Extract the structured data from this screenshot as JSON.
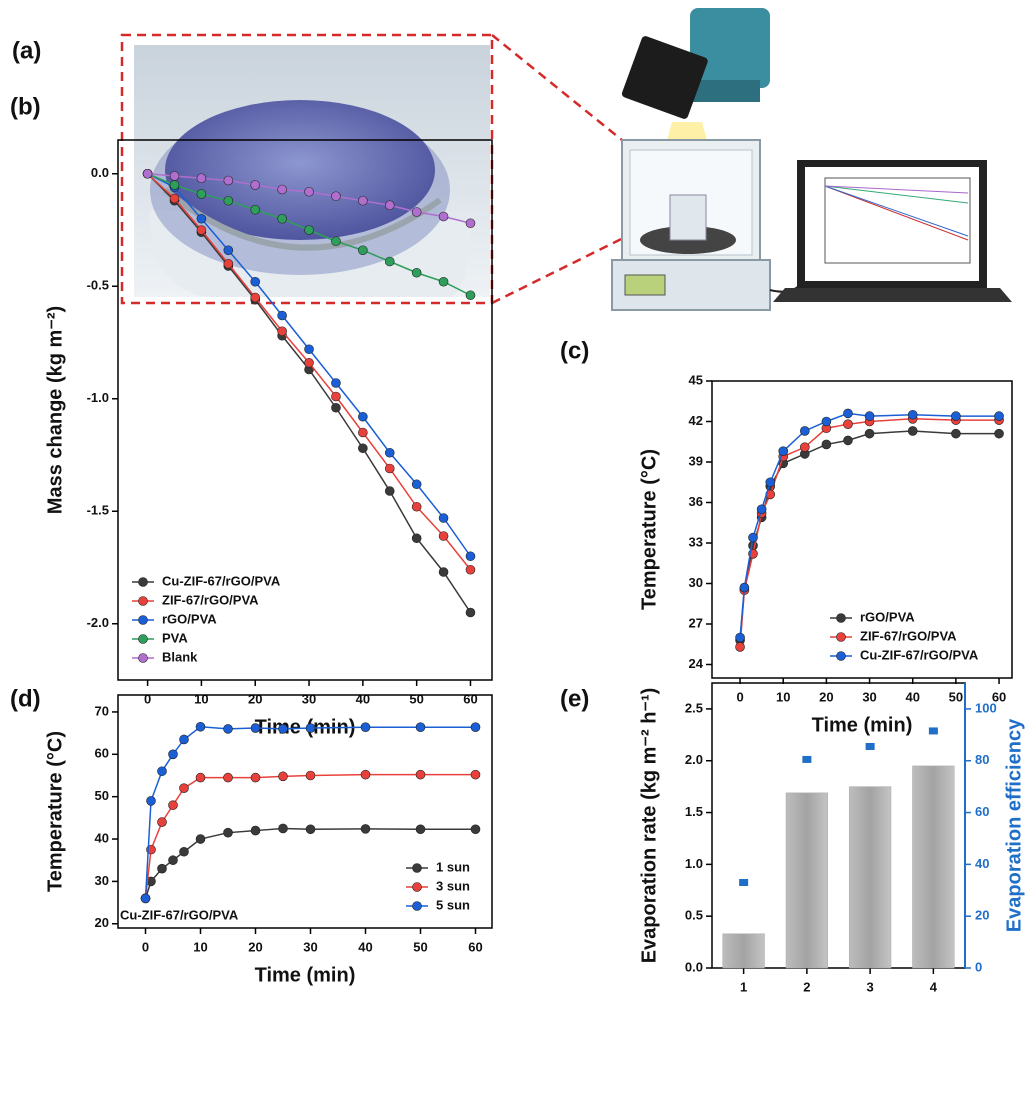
{
  "figure_a": {
    "panel": "(a)"
  },
  "chart_data": [
    {
      "type": "line",
      "panel": "(b)",
      "xlabel": "Time (min)",
      "ylabel": "Mass change (kg m⁻²)",
      "x": [
        0,
        5,
        10,
        15,
        20,
        25,
        30,
        35,
        40,
        45,
        50,
        55,
        60
      ],
      "xlim": [
        -5.5,
        64
      ],
      "xticks": [
        0,
        10,
        20,
        30,
        40,
        50,
        60
      ],
      "ylim": [
        -2.25,
        0.15
      ],
      "yticks": [
        {
          "value": 0,
          "label": "0.0"
        },
        -0.5,
        {
          "value": -1,
          "label": "-1.0"
        },
        -1.5,
        {
          "value": -2,
          "label": "-2.0"
        }
      ],
      "legend": "lower left",
      "series": [
        {
          "name": "Cu-ZIF-67/rGO/PVA",
          "color": "#3a3a3a",
          "values": [
            0,
            -0.12,
            -0.26,
            -0.41,
            -0.56,
            -0.72,
            -0.87,
            -1.04,
            -1.22,
            -1.41,
            -1.62,
            -1.77,
            -1.95
          ]
        },
        {
          "name": "ZIF-67/rGO/PVA",
          "color": "#e8413c",
          "values": [
            0,
            -0.11,
            -0.25,
            -0.4,
            -0.55,
            -0.7,
            -0.84,
            -0.99,
            -1.15,
            -1.31,
            -1.48,
            -1.61,
            -1.76
          ]
        },
        {
          "name": "rGO/PVA",
          "color": "#1a5fd6",
          "values": [
            0,
            -0.06,
            -0.2,
            -0.34,
            -0.48,
            -0.63,
            -0.78,
            -0.93,
            -1.08,
            -1.24,
            -1.38,
            -1.53,
            -1.7
          ]
        },
        {
          "name": "PVA",
          "color": "#2e9e5b",
          "values": [
            0,
            -0.05,
            -0.09,
            -0.12,
            -0.16,
            -0.2,
            -0.25,
            -0.3,
            -0.34,
            -0.39,
            -0.44,
            -0.48,
            -0.54
          ]
        },
        {
          "name": "Blank",
          "color": "#b06fcf",
          "values": [
            0,
            -0.01,
            -0.02,
            -0.03,
            -0.05,
            -0.07,
            -0.08,
            -0.1,
            -0.12,
            -0.14,
            -0.17,
            -0.19,
            -0.22
          ]
        }
      ]
    },
    {
      "type": "line",
      "panel": "(c)",
      "xlabel": "Time (min)",
      "ylabel": "Temperature (°C)",
      "x": [
        0,
        1,
        3,
        5,
        7,
        10,
        15,
        20,
        25,
        30,
        40,
        50,
        60
      ],
      "xlim": [
        -6.5,
        63
      ],
      "xticks": [
        0,
        10,
        20,
        30,
        40,
        50,
        60
      ],
      "ylim": [
        23,
        45
      ],
      "yticks": [
        24,
        27,
        30,
        33,
        36,
        39,
        42,
        45
      ],
      "legend": "lower right",
      "series": [
        {
          "name": "rGO/PVA",
          "color": "#3a3a3a",
          "values": [
            25.8,
            29.6,
            32.8,
            34.9,
            37.2,
            38.9,
            39.6,
            40.3,
            40.6,
            41.1,
            41.3,
            41.1,
            41.1
          ]
        },
        {
          "name": "ZIF-67/rGO/PVA",
          "color": "#e8413c",
          "values": [
            25.3,
            29.5,
            32.2,
            35.2,
            36.6,
            39.4,
            40.1,
            41.5,
            41.8,
            42,
            42.2,
            42.1,
            42.1
          ]
        },
        {
          "name": "Cu-ZIF-67/rGO/PVA",
          "color": "#1a5fd6",
          "values": [
            26,
            29.7,
            33.4,
            35.5,
            37.5,
            39.8,
            41.3,
            42,
            42.6,
            42.4,
            42.5,
            42.4,
            42.4
          ]
        }
      ]
    },
    {
      "type": "line",
      "panel": "(d)",
      "xlabel": "Time (min)",
      "ylabel": "Temperature (°C)",
      "annotation": "Cu-ZIF-67/rGO/PVA",
      "x": [
        0,
        1,
        3,
        5,
        7,
        10,
        15,
        20,
        25,
        30,
        40,
        50,
        60
      ],
      "xlim": [
        -5,
        63
      ],
      "xticks": [
        0,
        10,
        20,
        30,
        40,
        50,
        60
      ],
      "ylim": [
        19,
        74
      ],
      "yticks": [
        20,
        30,
        40,
        50,
        60,
        70
      ],
      "legend": "lower right",
      "series": [
        {
          "name": "1 sun",
          "color": "#3a3a3a",
          "values": [
            26,
            30,
            33,
            35,
            37,
            40,
            41.5,
            42,
            42.5,
            42.3,
            42.4,
            42.3,
            42.3
          ]
        },
        {
          "name": "3 sun",
          "color": "#e8413c",
          "values": [
            26,
            37.5,
            44,
            48,
            52,
            54.5,
            54.5,
            54.5,
            54.8,
            55,
            55.2,
            55.2,
            55.2
          ]
        },
        {
          "name": "5 sun",
          "color": "#1a5fd6",
          "values": [
            26,
            49,
            56,
            60,
            63.5,
            66.5,
            66,
            66.2,
            66,
            66.2,
            66.4,
            66.4,
            66.4
          ]
        }
      ]
    },
    {
      "type": "bar",
      "panel": "(e)",
      "ylabel": "Evaporation rate (kg m⁻² h⁻¹)",
      "y2label": "Evaporation efficiency",
      "categories": [
        "1",
        "2",
        "3",
        "4"
      ],
      "ylim": [
        0,
        2.75
      ],
      "yticks": [
        {
          "value": 0,
          "label": "0.0"
        },
        0.5,
        {
          "value": 1,
          "label": "1.0"
        },
        1.5,
        {
          "value": 2,
          "label": "2.0"
        },
        2.5
      ],
      "y2lim": [
        0,
        110
      ],
      "y2ticks": [
        0,
        20,
        40,
        60,
        80,
        100
      ],
      "series": [
        {
          "color": "#a9a9a9",
          "values": [
            0.33,
            1.69,
            1.75,
            1.95
          ]
        },
        {
          "axis": "y2",
          "color": "#1f6fc9",
          "values": [
            33,
            80.5,
            85.5,
            91.5
          ]
        }
      ]
    }
  ]
}
